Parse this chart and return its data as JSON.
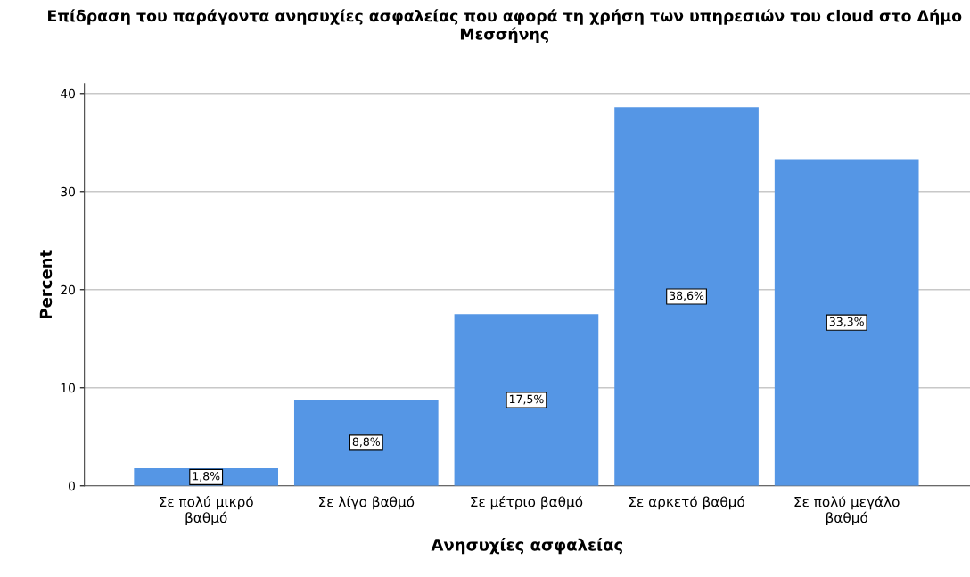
{
  "chart_data": {
    "type": "bar",
    "title": "Επίδραση του παράγοντα ανησυχίες ασφαλείας που αφορά τη χρήση των υπηρεσιών του cloud στο Δήμο Μεσσήνης",
    "xlabel": "Ανησυχίες ασφαλείας",
    "ylabel": "Percent",
    "categories": [
      "Σε πολύ μικρό βαθμό",
      "Σε λίγο βαθμό",
      "Σε μέτριο βαθμό",
      "Σε αρκετό βαθμό",
      "Σε πολύ μεγάλο βαθμό"
    ],
    "values": [
      1.8,
      8.8,
      17.5,
      38.6,
      33.3
    ],
    "value_labels": [
      "1,8%",
      "8,8%",
      "17,5%",
      "38,6%",
      "33,3%"
    ],
    "color": "#5596e5",
    "ylim": [
      0,
      41
    ],
    "yticks": [
      0,
      10,
      20,
      30,
      40
    ],
    "grid": "y"
  }
}
